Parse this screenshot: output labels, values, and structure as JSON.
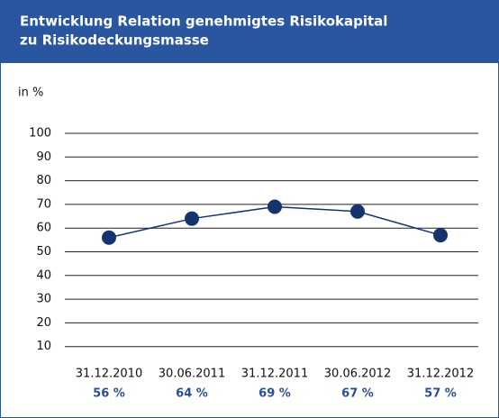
{
  "chart_data": {
    "type": "line",
    "title": [
      "Entwicklung Relation genehmigtes Risikokapital",
      "zu Risikodeckungsmasse"
    ],
    "y_label": "in %",
    "categories": [
      "31.12.2010",
      "30.06.2011",
      "31.12.2011",
      "30.06.2012",
      "31.12.2012"
    ],
    "values": [
      56,
      64,
      69,
      67,
      57
    ],
    "value_labels": [
      "56 %",
      "64 %",
      "69 %",
      "67 %",
      "57 %"
    ],
    "color": "#16336e",
    "ylim": [
      0,
      100
    ],
    "yticks": [
      10,
      20,
      30,
      40,
      50,
      60,
      70,
      80,
      90,
      100
    ],
    "grid": true
  }
}
